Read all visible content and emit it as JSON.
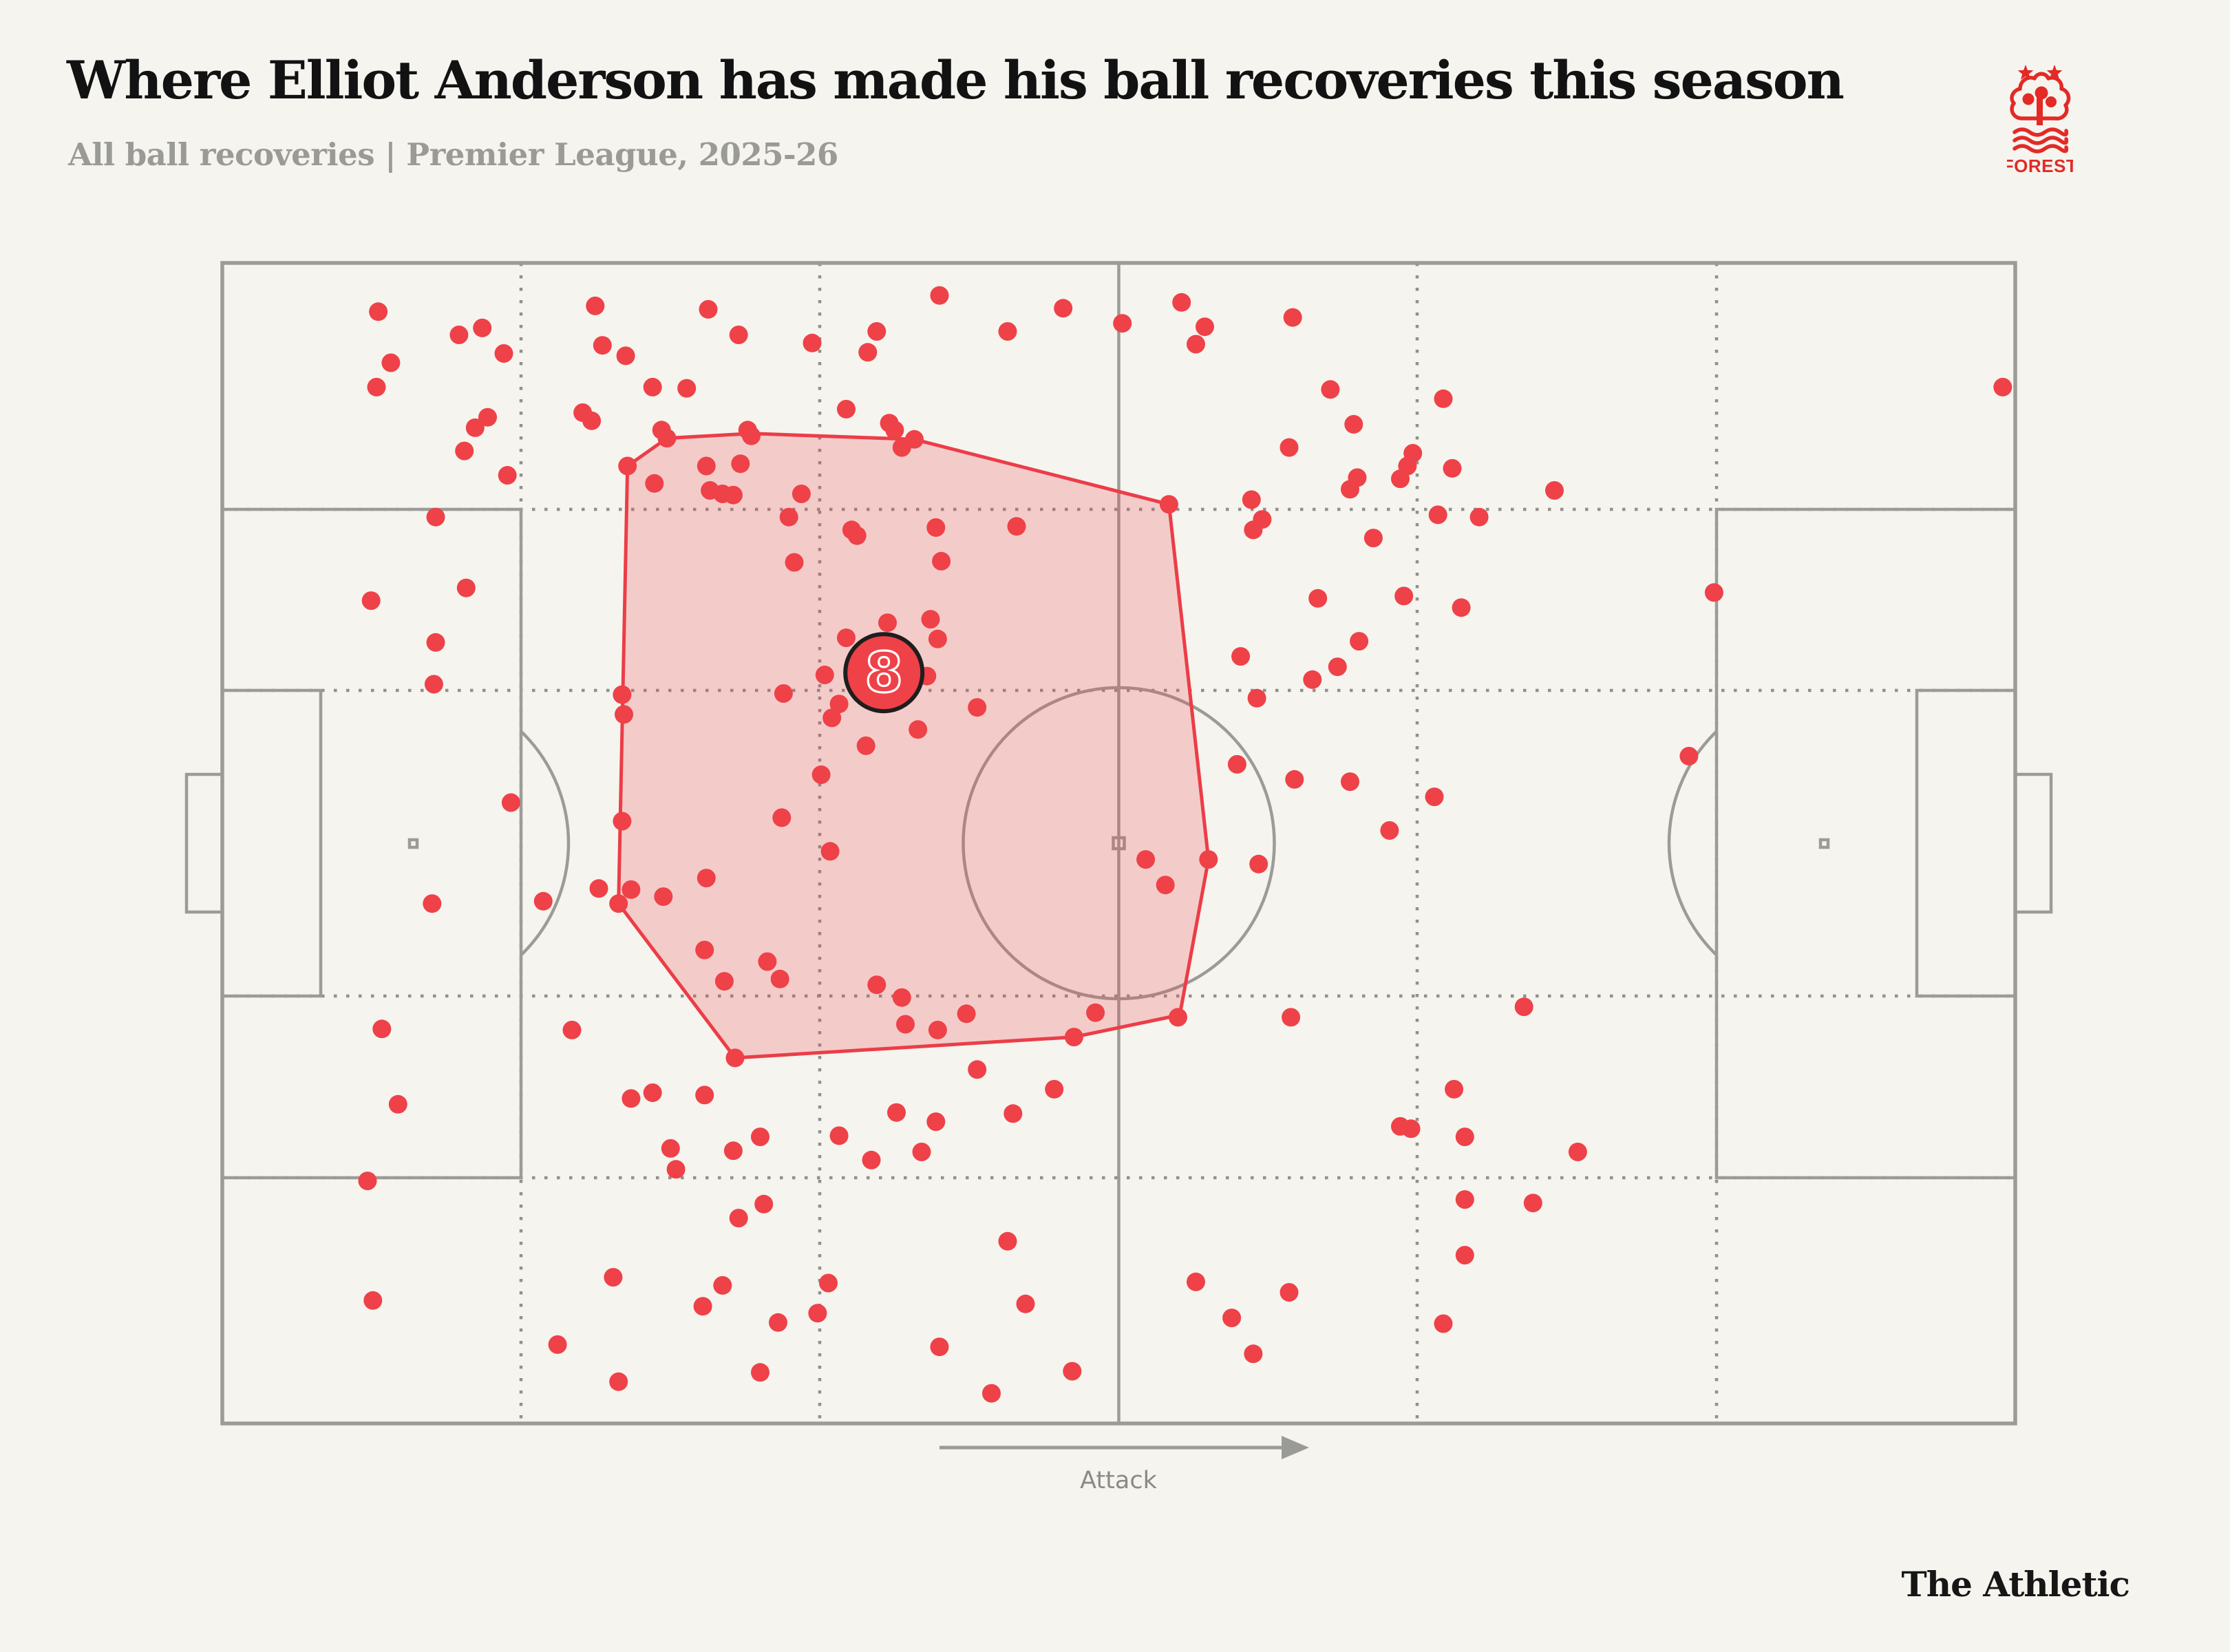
{
  "header": {
    "title": "Where Elliot Anderson has made his ball recoveries this season",
    "subtitle": "All ball recoveries | Premier League, 2025-26"
  },
  "branding": {
    "publisher": "The Athletic",
    "club_name": "Nottingham Forest",
    "club_label": "FOREST"
  },
  "pitch": {
    "attack_label": "Attack"
  },
  "colors": {
    "background": "#F5F4EF",
    "dot_red": "#EF4148",
    "hull_stroke": "#EC3D47",
    "hull_fill_opacity": 0.22,
    "pitch_line": "#9B9B98",
    "grid_dot": "#90908D",
    "title_text": "#121212",
    "subtitle_text": "#9A9A96",
    "marker_ring": "#1E1E1E",
    "logo_red": "#E32A26"
  },
  "chart_data": {
    "type": "scatter",
    "title": "Where Elliot Anderson has made his ball recoveries this season",
    "subtitle": "All ball recoveries | Premier League, 2025-26",
    "coordinate_system": "percent of pitch; x: 0 = own goal line, 100 = opposition goal line (attack left to right); y: 0 = top touchline, 100 = bottom touchline",
    "player_marker": {
      "x": 36.9,
      "y": 35.3,
      "label": "8"
    },
    "hull": [
      [
        22.6,
        17.5
      ],
      [
        24.8,
        15.1
      ],
      [
        29.5,
        14.7
      ],
      [
        38.6,
        15.2
      ],
      [
        52.8,
        20.8
      ],
      [
        55.0,
        51.4
      ],
      [
        53.4,
        64.8
      ],
      [
        47.5,
        66.7
      ],
      [
        28.6,
        68.5
      ],
      [
        22.1,
        55.2
      ]
    ],
    "points": [
      [
        8.7,
        4.2
      ],
      [
        9.4,
        8.6
      ],
      [
        13.2,
        6.2
      ],
      [
        15.7,
        7.8
      ],
      [
        8.6,
        10.7
      ],
      [
        14.1,
        14.2
      ],
      [
        13.5,
        16.2
      ],
      [
        15.9,
        18.3
      ],
      [
        11.9,
        21.9
      ],
      [
        13.6,
        28.0
      ],
      [
        8.3,
        29.1
      ],
      [
        11.9,
        32.7
      ],
      [
        11.8,
        36.3
      ],
      [
        16.1,
        46.5
      ],
      [
        11.7,
        55.2
      ],
      [
        17.9,
        55.0
      ],
      [
        8.9,
        66.0
      ],
      [
        9.8,
        72.5
      ],
      [
        8.1,
        79.1
      ],
      [
        8.4,
        89.4
      ],
      [
        14.5,
        5.6
      ],
      [
        20.8,
        3.7
      ],
      [
        21.2,
        7.1
      ],
      [
        22.5,
        8.0
      ],
      [
        27.1,
        4.0
      ],
      [
        28.8,
        6.2
      ],
      [
        32.9,
        6.9
      ],
      [
        36.5,
        5.9
      ],
      [
        36.0,
        7.7
      ],
      [
        24.0,
        10.7
      ],
      [
        25.9,
        10.8
      ],
      [
        14.8,
        13.3
      ],
      [
        20.1,
        12.9
      ],
      [
        20.6,
        13.6
      ],
      [
        24.5,
        14.4
      ],
      [
        29.3,
        14.4
      ],
      [
        34.8,
        12.6
      ],
      [
        37.2,
        13.8
      ],
      [
        40.0,
        2.8
      ],
      [
        43.8,
        5.9
      ],
      [
        46.9,
        3.9
      ],
      [
        50.2,
        5.2
      ],
      [
        53.5,
        3.4
      ],
      [
        54.8,
        5.5
      ],
      [
        54.3,
        7.0
      ],
      [
        59.7,
        4.7
      ],
      [
        61.8,
        10.9
      ],
      [
        22.6,
        17.5
      ],
      [
        24.8,
        15.1
      ],
      [
        29.5,
        14.9
      ],
      [
        27.0,
        17.5
      ],
      [
        28.9,
        17.3
      ],
      [
        24.1,
        19.0
      ],
      [
        27.2,
        19.6
      ],
      [
        27.9,
        19.9
      ],
      [
        28.5,
        20.0
      ],
      [
        32.3,
        19.9
      ],
      [
        37.5,
        14.4
      ],
      [
        37.9,
        15.9
      ],
      [
        38.6,
        15.2
      ],
      [
        31.6,
        21.9
      ],
      [
        35.1,
        23.0
      ],
      [
        35.4,
        23.5
      ],
      [
        39.8,
        22.8
      ],
      [
        44.3,
        22.7
      ],
      [
        52.8,
        20.8
      ],
      [
        40.1,
        25.7
      ],
      [
        31.9,
        25.8
      ],
      [
        34.8,
        32.3
      ],
      [
        37.1,
        31.0
      ],
      [
        39.5,
        30.7
      ],
      [
        39.9,
        32.4
      ],
      [
        33.6,
        35.5
      ],
      [
        39.3,
        35.6
      ],
      [
        42.1,
        38.3
      ],
      [
        34.4,
        38.0
      ],
      [
        34.0,
        39.2
      ],
      [
        35.9,
        41.6
      ],
      [
        38.8,
        40.2
      ],
      [
        33.4,
        44.1
      ],
      [
        22.3,
        37.2
      ],
      [
        22.4,
        38.9
      ],
      [
        31.3,
        37.1
      ],
      [
        22.3,
        48.1
      ],
      [
        21.0,
        53.9
      ],
      [
        22.8,
        54.0
      ],
      [
        22.1,
        55.2
      ],
      [
        24.6,
        54.6
      ],
      [
        27.0,
        53.0
      ],
      [
        31.2,
        47.8
      ],
      [
        33.9,
        50.7
      ],
      [
        26.9,
        59.2
      ],
      [
        30.4,
        60.2
      ],
      [
        31.1,
        61.7
      ],
      [
        28.0,
        61.9
      ],
      [
        36.5,
        62.2
      ],
      [
        37.9,
        63.3
      ],
      [
        38.1,
        65.6
      ],
      [
        28.6,
        68.5
      ],
      [
        39.9,
        66.1
      ],
      [
        41.5,
        64.7
      ],
      [
        48.7,
        64.6
      ],
      [
        47.5,
        66.7
      ],
      [
        53.3,
        65.0
      ],
      [
        55.0,
        51.4
      ],
      [
        51.5,
        51.4
      ],
      [
        52.6,
        53.6
      ],
      [
        56.8,
        33.9
      ],
      [
        57.7,
        37.5
      ],
      [
        57.4,
        20.4
      ],
      [
        58.0,
        22.1
      ],
      [
        57.5,
        23.0
      ],
      [
        56.6,
        43.2
      ],
      [
        57.8,
        51.8
      ],
      [
        63.1,
        13.9
      ],
      [
        59.5,
        15.9
      ],
      [
        66.4,
        16.4
      ],
      [
        66.1,
        17.5
      ],
      [
        65.7,
        18.6
      ],
      [
        63.3,
        18.5
      ],
      [
        62.9,
        19.5
      ],
      [
        68.1,
        11.7
      ],
      [
        68.6,
        17.7
      ],
      [
        74.3,
        19.6
      ],
      [
        67.8,
        21.7
      ],
      [
        70.1,
        21.9
      ],
      [
        64.2,
        23.7
      ],
      [
        61.1,
        28.9
      ],
      [
        65.9,
        28.7
      ],
      [
        69.1,
        29.7
      ],
      [
        63.4,
        32.6
      ],
      [
        62.2,
        34.8
      ],
      [
        60.8,
        35.9
      ],
      [
        62.9,
        44.7
      ],
      [
        59.8,
        44.5
      ],
      [
        67.6,
        46.0
      ],
      [
        65.1,
        48.9
      ],
      [
        83.2,
        28.4
      ],
      [
        81.8,
        42.5
      ],
      [
        99.3,
        10.7
      ],
      [
        42.1,
        69.5
      ],
      [
        46.4,
        71.2
      ],
      [
        44.1,
        73.3
      ],
      [
        39.8,
        74.0
      ],
      [
        37.6,
        73.2
      ],
      [
        39.0,
        76.6
      ],
      [
        43.8,
        84.3
      ],
      [
        44.8,
        89.7
      ],
      [
        40.0,
        93.4
      ],
      [
        47.4,
        95.5
      ],
      [
        42.9,
        97.4
      ],
      [
        54.3,
        87.8
      ],
      [
        56.3,
        90.9
      ],
      [
        57.5,
        94.0
      ],
      [
        19.5,
        66.1
      ],
      [
        22.8,
        72.0
      ],
      [
        24.0,
        71.5
      ],
      [
        26.9,
        71.7
      ],
      [
        25.0,
        76.3
      ],
      [
        28.5,
        76.5
      ],
      [
        30.0,
        75.3
      ],
      [
        25.3,
        78.1
      ],
      [
        34.4,
        75.2
      ],
      [
        36.2,
        77.3
      ],
      [
        30.2,
        81.1
      ],
      [
        28.8,
        82.3
      ],
      [
        21.8,
        87.4
      ],
      [
        27.9,
        88.1
      ],
      [
        26.8,
        89.9
      ],
      [
        33.8,
        87.9
      ],
      [
        33.2,
        90.5
      ],
      [
        31.0,
        91.3
      ],
      [
        18.7,
        93.2
      ],
      [
        30.0,
        95.6
      ],
      [
        22.1,
        96.4
      ],
      [
        72.6,
        64.1
      ],
      [
        59.6,
        65.0
      ],
      [
        68.7,
        71.2
      ],
      [
        65.7,
        74.4
      ],
      [
        66.3,
        74.6
      ],
      [
        69.3,
        75.3
      ],
      [
        75.6,
        76.6
      ],
      [
        69.3,
        80.7
      ],
      [
        73.1,
        81.0
      ],
      [
        69.3,
        85.5
      ],
      [
        59.5,
        88.7
      ],
      [
        68.1,
        91.4
      ]
    ]
  }
}
